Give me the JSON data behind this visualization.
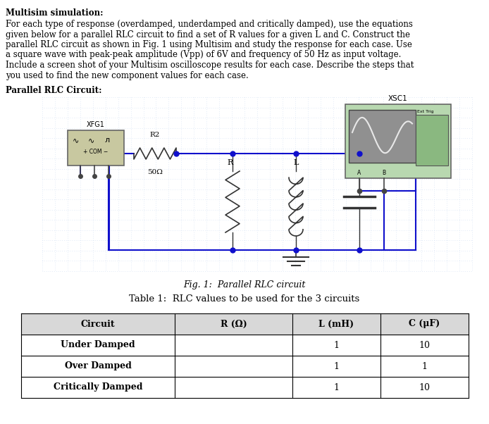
{
  "title_bold": "Multisim simulation:",
  "body_text": "For each type of response (overdamped, underdamped and critically damped), use the equations\ngiven below for a parallel RLC circuit to find a set of R values for a given L and C. Construct the\nparallel RLC circuit as shown in Fig. 1 using Multisim and study the response for each case. Use\na square wave with peak-peak amplitude (Vpp) of 6V and frequency of 50 Hz as input voltage.\nInclude a screen shot of your Multisim oscilloscope results for each case. Describe the steps that\nyou used to find the new component values for each case.",
  "parallel_rlc_label": "Parallel RLC Circuit:",
  "fig_caption": "Fig. 1:  Parallel RLC circuit",
  "table_title": "Table 1:  RLC values to be used for the 3 circuits",
  "table_headers": [
    "Circuit",
    "R (Ω)",
    "L (mH)",
    "C (μF)"
  ],
  "table_rows": [
    [
      "Under Damped",
      "",
      "1",
      "10"
    ],
    [
      "Over Damped",
      "",
      "1",
      "1"
    ],
    [
      "Critically Damped",
      "",
      "1",
      "10"
    ]
  ],
  "bg_color": "#ffffff",
  "text_color": "#000000",
  "wire_color": "#1010cc",
  "grid_color": "#c8d8f0",
  "header_bg": "#d8d8d8",
  "font_size_body": 8.5,
  "font_size_title": 8.5
}
